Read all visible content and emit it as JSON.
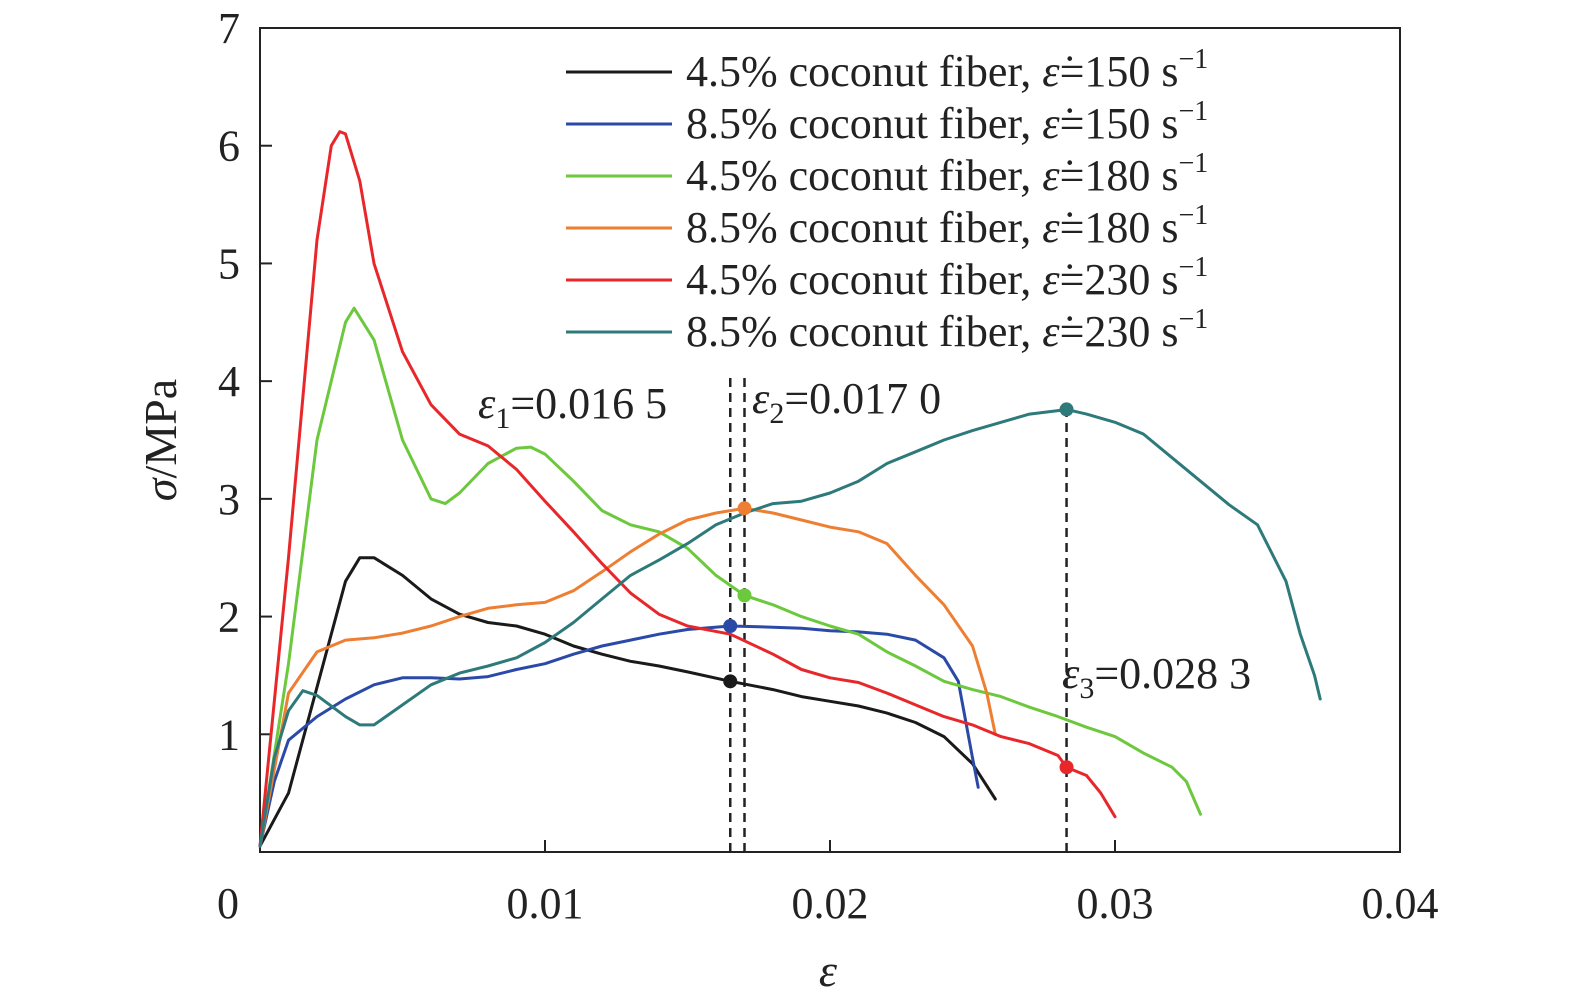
{
  "chart_data": {
    "type": "line",
    "xlabel": "ε",
    "ylabel_italic": "σ",
    "ylabel_rest": "/MPa",
    "xlim": [
      0,
      0.04
    ],
    "ylim": [
      0,
      7
    ],
    "grid": false,
    "legend_position": "top-right",
    "x_ticks": [
      {
        "value": 0.01,
        "label": "0.01"
      },
      {
        "value": 0.02,
        "label": "0.02"
      },
      {
        "value": 0.03,
        "label": "0.03"
      },
      {
        "value": 0.04,
        "label": "0.04"
      }
    ],
    "y_ticks": [
      {
        "value": 1,
        "label": "1"
      },
      {
        "value": 2,
        "label": "2"
      },
      {
        "value": 3,
        "label": "3"
      },
      {
        "value": 4,
        "label": "4"
      },
      {
        "value": 5,
        "label": "5"
      },
      {
        "value": 6,
        "label": "6"
      },
      {
        "value": 7,
        "label": "7"
      }
    ],
    "origin_label": "0",
    "series": [
      {
        "name": "4.5% coconut fiber, ε̇=150 s⁻¹",
        "legend_prefix": "4.5% coconut fiber, ",
        "legend_rate": "=150 s",
        "color": "#1a1a1a",
        "points": [
          [
            0,
            0.05
          ],
          [
            0.001,
            0.5
          ],
          [
            0.002,
            1.4
          ],
          [
            0.003,
            2.3
          ],
          [
            0.0035,
            2.5
          ],
          [
            0.004,
            2.5
          ],
          [
            0.005,
            2.35
          ],
          [
            0.006,
            2.15
          ],
          [
            0.007,
            2.02
          ],
          [
            0.008,
            1.95
          ],
          [
            0.009,
            1.92
          ],
          [
            0.01,
            1.85
          ],
          [
            0.011,
            1.75
          ],
          [
            0.012,
            1.68
          ],
          [
            0.013,
            1.62
          ],
          [
            0.014,
            1.58
          ],
          [
            0.015,
            1.53
          ],
          [
            0.0165,
            1.45
          ],
          [
            0.018,
            1.38
          ],
          [
            0.019,
            1.32
          ],
          [
            0.02,
            1.28
          ],
          [
            0.021,
            1.24
          ],
          [
            0.022,
            1.18
          ],
          [
            0.023,
            1.1
          ],
          [
            0.024,
            0.98
          ],
          [
            0.025,
            0.75
          ],
          [
            0.0258,
            0.45
          ]
        ]
      },
      {
        "name": "8.5% coconut fiber, ε̇=150 s⁻¹",
        "legend_prefix": "8.5% coconut fiber, ",
        "legend_rate": "=150 s",
        "color": "#2b4aa8",
        "points": [
          [
            0,
            0.05
          ],
          [
            0.0005,
            0.6
          ],
          [
            0.001,
            0.95
          ],
          [
            0.002,
            1.15
          ],
          [
            0.003,
            1.3
          ],
          [
            0.004,
            1.42
          ],
          [
            0.005,
            1.48
          ],
          [
            0.006,
            1.48
          ],
          [
            0.007,
            1.47
          ],
          [
            0.008,
            1.49
          ],
          [
            0.009,
            1.55
          ],
          [
            0.01,
            1.6
          ],
          [
            0.011,
            1.68
          ],
          [
            0.012,
            1.75
          ],
          [
            0.013,
            1.8
          ],
          [
            0.014,
            1.85
          ],
          [
            0.015,
            1.89
          ],
          [
            0.0165,
            1.92
          ],
          [
            0.018,
            1.91
          ],
          [
            0.019,
            1.9
          ],
          [
            0.02,
            1.88
          ],
          [
            0.021,
            1.87
          ],
          [
            0.022,
            1.85
          ],
          [
            0.023,
            1.8
          ],
          [
            0.024,
            1.65
          ],
          [
            0.0245,
            1.45
          ],
          [
            0.025,
            0.8
          ],
          [
            0.0252,
            0.55
          ]
        ]
      },
      {
        "name": "4.5% coconut fiber, ε̇=180 s⁻¹",
        "legend_prefix": "4.5% coconut fiber, ",
        "legend_rate": "=180 s",
        "color": "#6cc83c",
        "points": [
          [
            0,
            0.05
          ],
          [
            0.001,
            1.6
          ],
          [
            0.002,
            3.5
          ],
          [
            0.003,
            4.5
          ],
          [
            0.0033,
            4.62
          ],
          [
            0.004,
            4.35
          ],
          [
            0.005,
            3.5
          ],
          [
            0.006,
            3.0
          ],
          [
            0.0065,
            2.96
          ],
          [
            0.007,
            3.05
          ],
          [
            0.008,
            3.3
          ],
          [
            0.009,
            3.43
          ],
          [
            0.0095,
            3.44
          ],
          [
            0.01,
            3.38
          ],
          [
            0.011,
            3.15
          ],
          [
            0.012,
            2.9
          ],
          [
            0.013,
            2.78
          ],
          [
            0.014,
            2.72
          ],
          [
            0.015,
            2.58
          ],
          [
            0.016,
            2.35
          ],
          [
            0.017,
            2.18
          ],
          [
            0.018,
            2.1
          ],
          [
            0.019,
            2.0
          ],
          [
            0.02,
            1.92
          ],
          [
            0.021,
            1.85
          ],
          [
            0.022,
            1.7
          ],
          [
            0.023,
            1.58
          ],
          [
            0.024,
            1.45
          ],
          [
            0.025,
            1.38
          ],
          [
            0.026,
            1.32
          ],
          [
            0.027,
            1.23
          ],
          [
            0.028,
            1.15
          ],
          [
            0.029,
            1.06
          ],
          [
            0.03,
            0.98
          ],
          [
            0.031,
            0.84
          ],
          [
            0.032,
            0.72
          ],
          [
            0.0325,
            0.6
          ],
          [
            0.033,
            0.32
          ]
        ]
      },
      {
        "name": "8.5% coconut fiber, ε̇=180 s⁻¹",
        "legend_prefix": "8.5% coconut fiber, ",
        "legend_rate": "=180 s",
        "color": "#ee7e32",
        "points": [
          [
            0,
            0.05
          ],
          [
            0.0005,
            0.7
          ],
          [
            0.001,
            1.35
          ],
          [
            0.002,
            1.7
          ],
          [
            0.003,
            1.8
          ],
          [
            0.004,
            1.82
          ],
          [
            0.005,
            1.86
          ],
          [
            0.006,
            1.92
          ],
          [
            0.007,
            2.0
          ],
          [
            0.008,
            2.07
          ],
          [
            0.009,
            2.1
          ],
          [
            0.01,
            2.12
          ],
          [
            0.011,
            2.22
          ],
          [
            0.012,
            2.38
          ],
          [
            0.013,
            2.55
          ],
          [
            0.014,
            2.7
          ],
          [
            0.015,
            2.82
          ],
          [
            0.016,
            2.88
          ],
          [
            0.017,
            2.92
          ],
          [
            0.018,
            2.88
          ],
          [
            0.019,
            2.82
          ],
          [
            0.02,
            2.76
          ],
          [
            0.021,
            2.72
          ],
          [
            0.022,
            2.62
          ],
          [
            0.023,
            2.35
          ],
          [
            0.024,
            2.1
          ],
          [
            0.025,
            1.75
          ],
          [
            0.0255,
            1.35
          ],
          [
            0.0258,
            1.0
          ]
        ]
      },
      {
        "name": "4.5% coconut fiber, ε̇=230 s⁻¹",
        "legend_prefix": "4.5% coconut fiber, ",
        "legend_rate": "=230 s",
        "color": "#e8272b",
        "points": [
          [
            0,
            0.05
          ],
          [
            0.001,
            2.5
          ],
          [
            0.002,
            5.2
          ],
          [
            0.0025,
            6.0
          ],
          [
            0.0028,
            6.12
          ],
          [
            0.003,
            6.1
          ],
          [
            0.0035,
            5.7
          ],
          [
            0.004,
            5.0
          ],
          [
            0.005,
            4.25
          ],
          [
            0.006,
            3.8
          ],
          [
            0.007,
            3.55
          ],
          [
            0.008,
            3.45
          ],
          [
            0.009,
            3.25
          ],
          [
            0.01,
            2.98
          ],
          [
            0.011,
            2.72
          ],
          [
            0.012,
            2.45
          ],
          [
            0.013,
            2.2
          ],
          [
            0.014,
            2.02
          ],
          [
            0.015,
            1.92
          ],
          [
            0.0165,
            1.85
          ],
          [
            0.018,
            1.68
          ],
          [
            0.019,
            1.55
          ],
          [
            0.02,
            1.48
          ],
          [
            0.021,
            1.44
          ],
          [
            0.022,
            1.35
          ],
          [
            0.023,
            1.25
          ],
          [
            0.024,
            1.15
          ],
          [
            0.025,
            1.08
          ],
          [
            0.026,
            0.98
          ],
          [
            0.027,
            0.92
          ],
          [
            0.028,
            0.82
          ],
          [
            0.0283,
            0.72
          ],
          [
            0.029,
            0.65
          ],
          [
            0.0295,
            0.5
          ],
          [
            0.03,
            0.3
          ]
        ]
      },
      {
        "name": "8.5% coconut fiber, ε̇=230 s⁻¹",
        "legend_prefix": "8.5% coconut fiber, ",
        "legend_rate": "=230 s",
        "color": "#2e7a7a",
        "points": [
          [
            0,
            0.05
          ],
          [
            0.0005,
            0.8
          ],
          [
            0.001,
            1.2
          ],
          [
            0.0015,
            1.37
          ],
          [
            0.002,
            1.33
          ],
          [
            0.003,
            1.15
          ],
          [
            0.0035,
            1.08
          ],
          [
            0.004,
            1.08
          ],
          [
            0.005,
            1.25
          ],
          [
            0.006,
            1.42
          ],
          [
            0.007,
            1.52
          ],
          [
            0.008,
            1.58
          ],
          [
            0.009,
            1.65
          ],
          [
            0.01,
            1.78
          ],
          [
            0.011,
            1.95
          ],
          [
            0.012,
            2.15
          ],
          [
            0.013,
            2.35
          ],
          [
            0.014,
            2.48
          ],
          [
            0.015,
            2.62
          ],
          [
            0.016,
            2.78
          ],
          [
            0.017,
            2.88
          ],
          [
            0.018,
            2.96
          ],
          [
            0.019,
            2.98
          ],
          [
            0.02,
            3.05
          ],
          [
            0.021,
            3.15
          ],
          [
            0.022,
            3.3
          ],
          [
            0.023,
            3.4
          ],
          [
            0.024,
            3.5
          ],
          [
            0.025,
            3.58
          ],
          [
            0.026,
            3.65
          ],
          [
            0.027,
            3.72
          ],
          [
            0.028,
            3.75
          ],
          [
            0.0283,
            3.76
          ],
          [
            0.029,
            3.72
          ],
          [
            0.03,
            3.65
          ],
          [
            0.031,
            3.55
          ],
          [
            0.032,
            3.35
          ],
          [
            0.033,
            3.15
          ],
          [
            0.034,
            2.95
          ],
          [
            0.035,
            2.78
          ],
          [
            0.036,
            2.3
          ],
          [
            0.0365,
            1.85
          ],
          [
            0.037,
            1.5
          ],
          [
            0.0372,
            1.3
          ]
        ]
      }
    ],
    "markers": [
      {
        "x": 0.0165,
        "y": 1.45,
        "color": "#1a1a1a"
      },
      {
        "x": 0.0165,
        "y": 1.92,
        "color": "#2b4aa8"
      },
      {
        "x": 0.017,
        "y": 2.18,
        "color": "#6cc83c"
      },
      {
        "x": 0.017,
        "y": 2.92,
        "color": "#ee7e32"
      },
      {
        "x": 0.0283,
        "y": 0.72,
        "color": "#e8272b"
      },
      {
        "x": 0.0283,
        "y": 3.76,
        "color": "#2e7a7a"
      }
    ],
    "reference_lines": [
      {
        "x": 0.0165,
        "y_top": 4.05
      },
      {
        "x": 0.017,
        "y_top": 4.05
      },
      {
        "x": 0.0283,
        "y_top": 3.76
      }
    ],
    "annotations": [
      {
        "symbol": "ε",
        "subscript": "1",
        "value": "=0.016 5"
      },
      {
        "symbol": "ε",
        "subscript": "2",
        "value": "=0.017 0"
      },
      {
        "symbol": "ε",
        "subscript": "3",
        "value": "=0.028 3"
      }
    ],
    "legend_rate_symbol": "ε̇",
    "legend_exponent": "−1"
  }
}
